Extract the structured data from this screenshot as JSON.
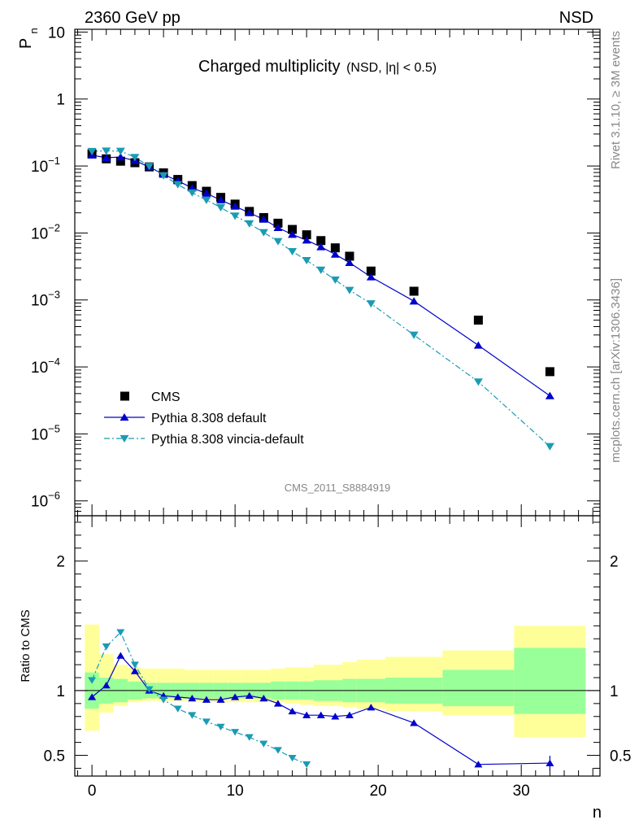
{
  "header": {
    "left": "2360 GeV pp",
    "right": "NSD"
  },
  "title": {
    "main": "Charged multiplicity",
    "sub": "(NSD, |η| < 0.5)"
  },
  "side_labels": {
    "rivet": "Rivet 3.1.10, ≥ 3M events",
    "mcplots": "mcplots.cern.ch [arXiv:1306.3436]"
  },
  "analysis_id": "CMS_2011_S8884919",
  "axis": {
    "ylabel_top_main": "P",
    "ylabel_top_sub": "n",
    "ylabel_bottom": "Ratio to CMS",
    "xlabel": "n"
  },
  "colors": {
    "data": "#000000",
    "default": "#0000cc",
    "vincia": "#1a9bb3",
    "band_inner": "#99ff99",
    "band_outer": "#ffff99"
  },
  "chart_data": [
    {
      "type": "scatter",
      "yscale": "log",
      "xlim": [
        -1.2,
        35.5
      ],
      "ylim": [
        6e-07,
        11
      ],
      "xticks": [
        0,
        10,
        20,
        30
      ],
      "yticks": [
        {
          "v": 10,
          "m": "10",
          "e": ""
        },
        {
          "v": 1,
          "m": "1",
          "e": ""
        },
        {
          "v": 0.1,
          "m": "10",
          "e": "−1"
        },
        {
          "v": 0.01,
          "m": "10",
          "e": "−2"
        },
        {
          "v": 0.001,
          "m": "10",
          "e": "−3"
        },
        {
          "v": 0.0001,
          "m": "10",
          "e": "−4"
        },
        {
          "v": 1e-05,
          "m": "10",
          "e": "−5"
        },
        {
          "v": 1e-06,
          "m": "10",
          "e": "−6"
        }
      ],
      "legend": [
        {
          "label": "CMS",
          "series": "cms"
        },
        {
          "label": "Pythia 8.308 default",
          "series": "default"
        },
        {
          "label": "Pythia 8.308 vincia-default",
          "series": "vincia"
        }
      ],
      "series": [
        {
          "name": "CMS",
          "x": [
            0,
            1,
            2,
            3,
            4,
            5,
            6,
            7,
            8,
            9,
            10,
            11,
            12,
            13,
            14,
            15,
            16,
            17,
            18,
            19.5,
            22.5,
            27,
            32
          ],
          "y": [
            0.152,
            0.128,
            0.118,
            0.112,
            0.097,
            0.079,
            0.063,
            0.051,
            0.042,
            0.034,
            0.027,
            0.021,
            0.017,
            0.014,
            0.0113,
            0.0094,
            0.0077,
            0.006,
            0.0045,
            0.0027,
            0.00135,
            0.0005,
            8.5e-05
          ]
        },
        {
          "name": "Pythia 8.308 default",
          "x": [
            0,
            1,
            2,
            3,
            4,
            5,
            6,
            7,
            8,
            9,
            10,
            11,
            12,
            13,
            14,
            15,
            16,
            17,
            18,
            19.5,
            22.5,
            27,
            32
          ],
          "y": [
            0.145,
            0.133,
            0.136,
            0.12,
            0.097,
            0.075,
            0.06,
            0.047,
            0.039,
            0.031,
            0.025,
            0.02,
            0.016,
            0.012,
            0.0095,
            0.0078,
            0.0062,
            0.0048,
            0.0036,
            0.0022,
            0.00096,
            0.00021,
            3.7e-05
          ]
        },
        {
          "name": "Pythia 8.308 vincia-default",
          "x": [
            0,
            1,
            2,
            3,
            4,
            5,
            6,
            7,
            8,
            9,
            10,
            11,
            12,
            13,
            14,
            15,
            16,
            17,
            18,
            19.5,
            22.5,
            27,
            32
          ],
          "y": [
            0.166,
            0.168,
            0.167,
            0.135,
            0.099,
            0.072,
            0.053,
            0.04,
            0.031,
            0.024,
            0.018,
            0.0138,
            0.0102,
            0.0075,
            0.0053,
            0.0039,
            0.0028,
            0.002,
            0.0014,
            0.00088,
            0.0003,
            6e-05,
            6.5e-06
          ]
        }
      ]
    },
    {
      "type": "scatter",
      "xlim": [
        -1.2,
        35.5
      ],
      "ylim": [
        0.34,
        2.35
      ],
      "xticks": [
        0,
        10,
        20,
        30
      ],
      "yticks": [
        0.5,
        1,
        2
      ],
      "reference": 1,
      "bands": {
        "edges": [
          -0.5,
          0.5,
          1.5,
          2.5,
          3.5,
          4.5,
          5.5,
          6.5,
          7.5,
          8.5,
          9.5,
          10.5,
          11.5,
          12.5,
          13.5,
          14.5,
          15.5,
          16.5,
          17.5,
          18.5,
          20.5,
          24.5,
          29.5,
          34.5
        ],
        "inner_lo": [
          0.86,
          0.9,
          0.91,
          0.93,
          0.94,
          0.94,
          0.94,
          0.94,
          0.94,
          0.94,
          0.94,
          0.94,
          0.94,
          0.93,
          0.93,
          0.93,
          0.92,
          0.92,
          0.91,
          0.91,
          0.9,
          0.88,
          0.82,
          0.54
        ],
        "inner_hi": [
          1.14,
          1.1,
          1.09,
          1.07,
          1.06,
          1.06,
          1.06,
          1.06,
          1.06,
          1.06,
          1.06,
          1.06,
          1.06,
          1.07,
          1.07,
          1.07,
          1.08,
          1.08,
          1.09,
          1.09,
          1.1,
          1.16,
          1.33,
          1.75
        ],
        "outer_lo": [
          0.69,
          0.83,
          0.88,
          0.91,
          0.92,
          0.92,
          0.92,
          0.92,
          0.91,
          0.91,
          0.91,
          0.91,
          0.91,
          0.91,
          0.9,
          0.89,
          0.88,
          0.88,
          0.87,
          0.86,
          0.84,
          0.81,
          0.64,
          0.42
        ],
        "outer_hi": [
          1.51,
          1.28,
          1.2,
          1.18,
          1.17,
          1.17,
          1.17,
          1.16,
          1.16,
          1.16,
          1.16,
          1.16,
          1.16,
          1.17,
          1.18,
          1.18,
          1.2,
          1.2,
          1.22,
          1.24,
          1.26,
          1.31,
          1.5,
          2.28
        ]
      },
      "series": [
        {
          "name": "Pythia 8.308 default",
          "x": [
            0,
            1,
            2,
            3,
            4,
            5,
            6,
            7,
            8,
            9,
            10,
            11,
            12,
            13,
            14,
            15,
            16,
            17,
            18,
            19.5,
            22.5,
            27,
            32
          ],
          "y": [
            0.95,
            1.04,
            1.27,
            1.15,
            1.0,
            0.96,
            0.95,
            0.94,
            0.93,
            0.93,
            0.95,
            0.96,
            0.94,
            0.9,
            0.84,
            0.81,
            0.81,
            0.8,
            0.81,
            0.87,
            0.75,
            0.43,
            0.44
          ]
        },
        {
          "name": "Pythia 8.308 vincia-default",
          "x": [
            0,
            1,
            2,
            3,
            4,
            5,
            6,
            7,
            8,
            9,
            10,
            11,
            12,
            13,
            14,
            15
          ],
          "y": [
            1.08,
            1.34,
            1.45,
            1.2,
            1.01,
            0.93,
            0.86,
            0.81,
            0.76,
            0.72,
            0.68,
            0.64,
            0.59,
            0.54,
            0.48,
            0.43
          ]
        }
      ]
    }
  ]
}
